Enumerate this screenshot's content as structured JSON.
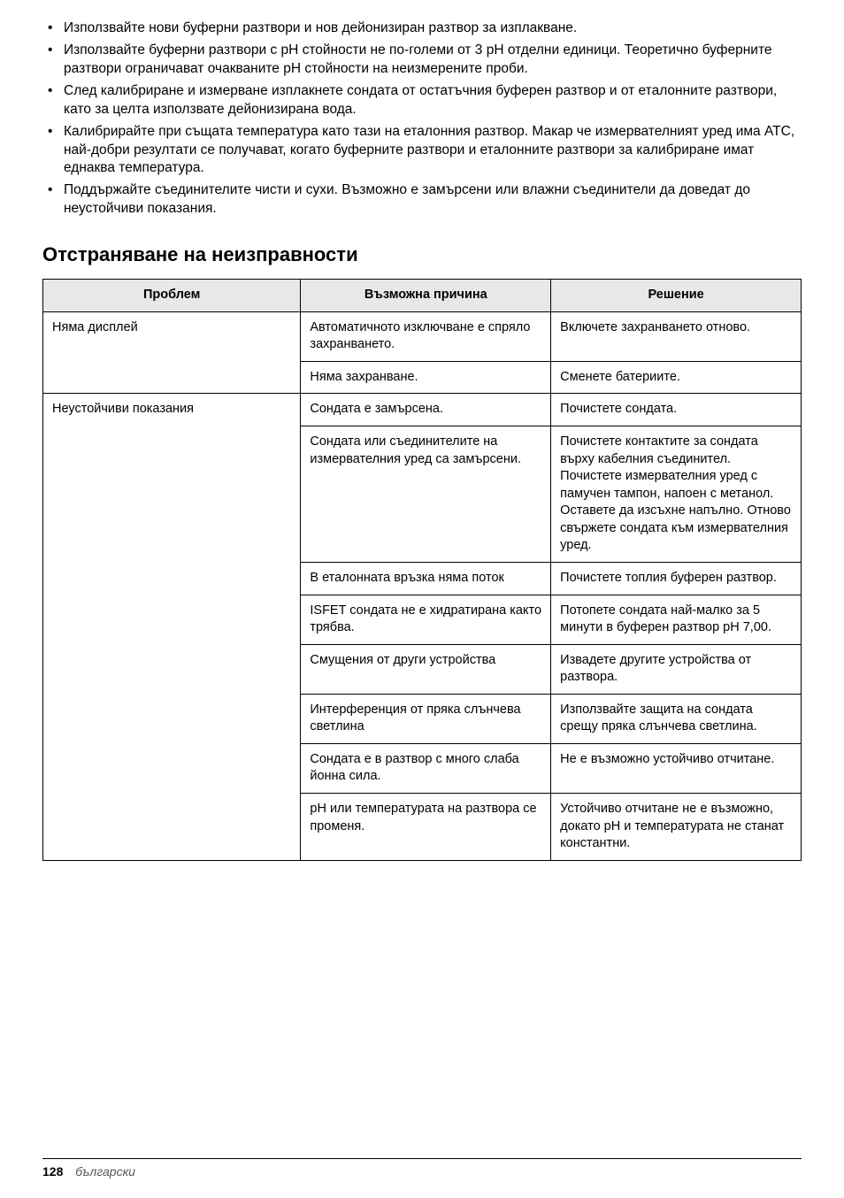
{
  "bullets": [
    "Използвайте нови буферни разтвори и нов дейонизиран разтвор за изплакване.",
    "Използвайте буферни разтвори с pH стойности не по-големи от 3 pH отделни единици. Теоретично буферните разтвори ограничават очакваните pH стойности на неизмерените проби.",
    "След калибриране и измерване изплакнете сондата от остатъчния буферен разтвор и от еталонните разтвори, като за целта използвате дейонизирана вода.",
    "Калибрирайте при същата температура като тази на еталонния разтвор. Макар че измервателният уред има ATC, най-добри резултати се получават, когато буферните разтвори и еталонните разтвори за калибриране имат еднаква температура.",
    "Поддържайте съединителите чисти и сухи. Възможно е замърсени или влажни съединители да доведат до неустойчиви показания."
  ],
  "section_title": "Отстраняване на неизправности",
  "headers": {
    "c1": "Проблем",
    "c2": "Възможна причина",
    "c3": "Решение"
  },
  "col_widths": {
    "c1": "34%",
    "c2": "33%",
    "c3": "33%"
  },
  "groups": [
    {
      "problem": "Няма дисплей",
      "rows": [
        {
          "cause": "Автоматичното изключване е спряло захранването.",
          "solution": "Включете захранването отново."
        },
        {
          "cause": "Няма захранване.",
          "solution": "Сменете батериите."
        }
      ]
    },
    {
      "problem": "Неустойчиви показания",
      "rows": [
        {
          "cause": "Сондата е замърсена.",
          "solution": "Почистете сондата."
        },
        {
          "cause": "Сондата или съединителите на измервателния уред са замърсени.",
          "solution": "Почистете контактите за сондата върху кабелния съединител. Почистете измервателния уред с памучен тампон, напоен с метанол. Оставете да изсъхне напълно. Отново свържете сондата към измервателния уред."
        },
        {
          "cause": "В еталонната връзка няма поток",
          "solution": "Почистете топлия буферен разтвор."
        },
        {
          "cause": "ISFET сондата не е хидратирана както трябва.",
          "solution": "Потопете сондата най-малко за 5 минути в буферен разтвор pH 7,00."
        },
        {
          "cause": "Смущения от други устройства",
          "solution": "Извадете другите устройства от разтвора."
        },
        {
          "cause": "Интерференция от пряка слънчева светлина",
          "solution": "Използвайте защита на сондата срещу пряка слънчева светлина."
        },
        {
          "cause": "Сондата е в разтвор с много слаба йонна сила.",
          "solution": "Не е възможно устойчиво отчитане."
        },
        {
          "cause": "pH или температурата на разтвора се променя.",
          "solution": "Устойчиво отчитане не е възможно, докато pH и температурата не станат константни."
        }
      ]
    }
  ],
  "footer": {
    "page": "128",
    "lang": "български"
  }
}
